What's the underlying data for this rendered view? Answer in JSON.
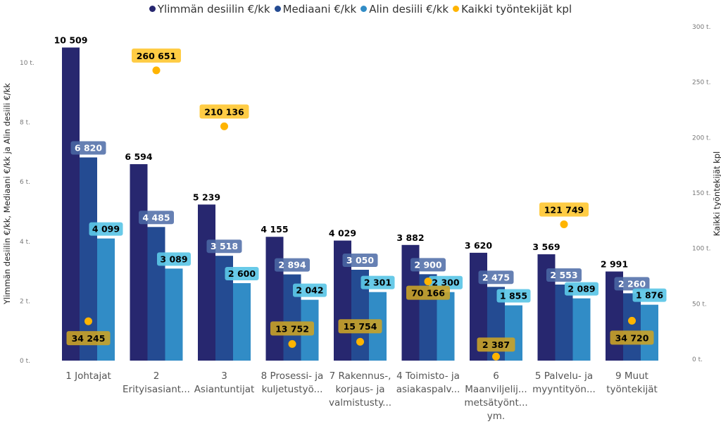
{
  "chart_data": {
    "type": "bar",
    "title": "",
    "categories": [
      [
        "1 Johtajat"
      ],
      [
        "2",
        "Erityisasiant..."
      ],
      [
        "3",
        "Asiantuntijat"
      ],
      [
        "8 Prosessi- ja",
        "kuljetustyö..."
      ],
      [
        "7 Rakennus-,",
        "korjaus- ja",
        "valmistusty..."
      ],
      [
        "4 Toimisto- ja",
        "asiakaspalv..."
      ],
      [
        "6",
        "Maanviljelij...",
        "metsätyönt...",
        "ym."
      ],
      [
        "5 Palvelu- ja",
        "myyntityön..."
      ],
      [
        "9 Muut",
        "työntekijät"
      ]
    ],
    "series": [
      {
        "name": "Ylimmän desiilin €/kk",
        "type": "bar",
        "axis": "left",
        "color": "#27276f",
        "values": [
          10509,
          6594,
          5239,
          4155,
          4029,
          3882,
          3620,
          3569,
          2991
        ],
        "labels": [
          "10 509",
          "6 594",
          "5 239",
          "4 155",
          "4 029",
          "3 882",
          "3 620",
          "3 569",
          "2 991"
        ]
      },
      {
        "name": "Mediaani €/kk",
        "type": "bar",
        "axis": "left",
        "color": "#244b92",
        "values": [
          6820,
          4485,
          3518,
          2894,
          3050,
          2900,
          2475,
          2553,
          2260
        ],
        "labels": [
          "6 820",
          "4 485",
          "3 518",
          "2 894",
          "3 050",
          "2 900",
          "2 475",
          "2 553",
          "2 260"
        ]
      },
      {
        "name": "Alin desiili €/kk",
        "type": "bar",
        "axis": "left",
        "color": "#318cc6",
        "values": [
          4099,
          3089,
          2600,
          2042,
          2301,
          2300,
          1855,
          2089,
          1876
        ],
        "labels": [
          "4 099",
          "3 089",
          "2 600",
          "2 042",
          "2 301",
          "2 300",
          "1 855",
          "2 089",
          "1 876"
        ]
      },
      {
        "name": "Kaikki työntekijät kpl",
        "type": "scatter",
        "axis": "right",
        "color": "#ffb400",
        "values": [
          34245,
          260651,
          210136,
          13752,
          15754,
          70166,
          2387,
          121749,
          34720
        ],
        "labels": [
          "34 245",
          "260 651",
          "210 136",
          "13 752",
          "15 754",
          "70 166",
          "2 387",
          "121 749",
          "34 720"
        ]
      }
    ],
    "y_left": {
      "label": "Ylimmän desiilin €/kk, Mediaani €/kk ja Alin desiili €/kk",
      "range": [
        0,
        11000
      ],
      "ticks": [
        0,
        2000,
        4000,
        6000,
        8000,
        10000
      ],
      "tick_labels": [
        "0 t.",
        "2 t.",
        "4 t.",
        "6 t.",
        "8 t.",
        "10 t."
      ]
    },
    "y_right": {
      "label": "Kaikki työntekijät kpl",
      "range": [
        0,
        300000
      ],
      "ticks": [
        0,
        50000,
        100000,
        150000,
        200000,
        250000,
        300000
      ],
      "tick_labels": [
        "0 t.",
        "50 t.",
        "100 t.",
        "150 t.",
        "200 t.",
        "250 t.",
        "300 t."
      ]
    },
    "legend": "top-center",
    "grid": false
  }
}
